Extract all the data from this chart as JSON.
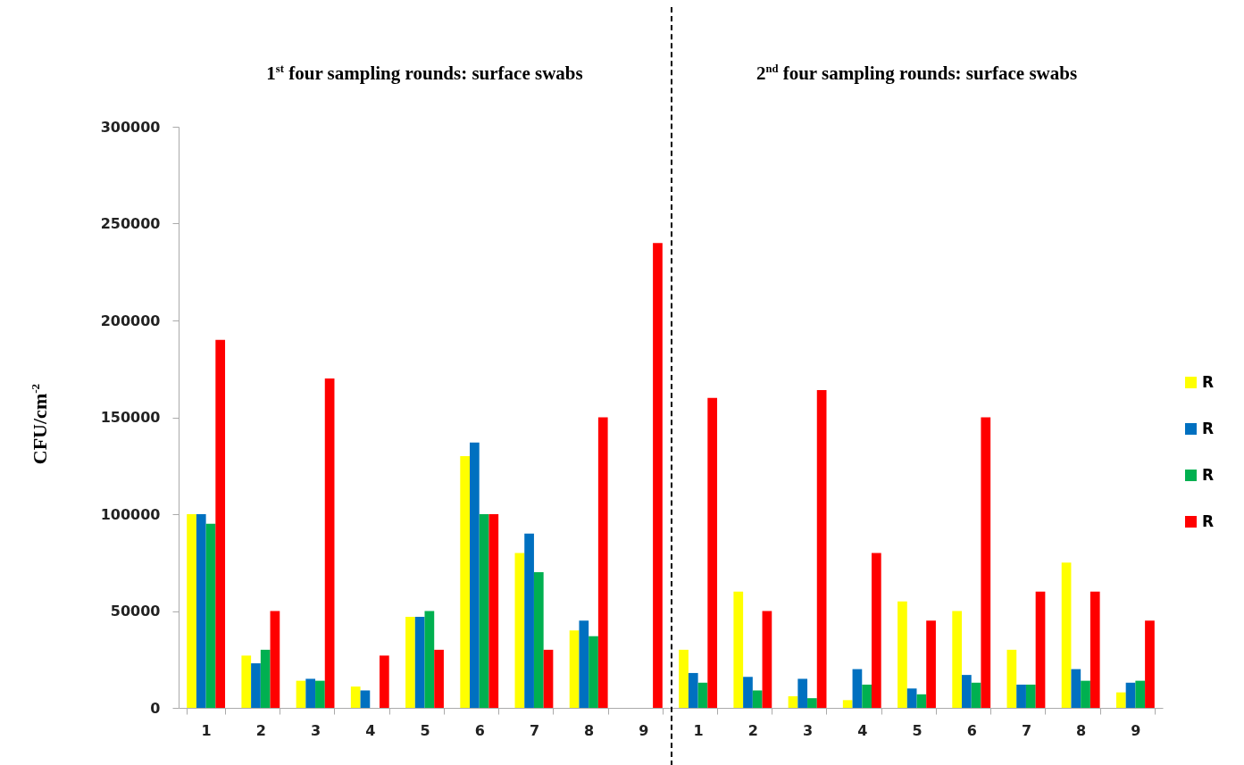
{
  "chart_data": {
    "type": "bar",
    "ylabel": "CFU/cm$^{-2}$",
    "annotations": [
      "1$^{st}$ four sampling rounds: surface swabs",
      "2$^{nd}$ four sampling rounds: surface swabs"
    ],
    "categories": [
      "1",
      "2",
      "3",
      "4",
      "5",
      "6",
      "7",
      "8",
      "9",
      "1",
      "2",
      "3",
      "4",
      "5",
      "6",
      "7",
      "8",
      "9"
    ],
    "series": [
      {
        "name": "R",
        "color": "#ffff00",
        "values": [
          100000,
          27000,
          14000,
          11000,
          47000,
          130000,
          80000,
          40000,
          null,
          30000,
          60000,
          6000,
          4000,
          55000,
          50000,
          30000,
          75000,
          8000
        ]
      },
      {
        "name": "R",
        "color": "#0070c0",
        "values": [
          100000,
          23000,
          15000,
          9000,
          47000,
          137000,
          90000,
          45000,
          null,
          18000,
          16000,
          15000,
          20000,
          10000,
          17000,
          12000,
          20000,
          13000
        ]
      },
      {
        "name": "R",
        "color": "#00b050",
        "values": [
          95000,
          30000,
          14000,
          null,
          50000,
          100000,
          70000,
          37000,
          null,
          13000,
          9000,
          5000,
          12000,
          7000,
          13000,
          12000,
          14000,
          14000
        ]
      },
      {
        "name": "R",
        "color": "#ff0000",
        "values": [
          190000,
          50000,
          170000,
          27000,
          30000,
          100000,
          30000,
          150000,
          240000,
          160000,
          50000,
          164000,
          80000,
          45000,
          150000,
          60000,
          60000,
          45000
        ]
      }
    ],
    "ylim": [
      0,
      300000
    ],
    "yticks": [
      0,
      50000,
      100000,
      150000,
      200000,
      250000,
      300000
    ],
    "grid": false,
    "legend": "right"
  }
}
